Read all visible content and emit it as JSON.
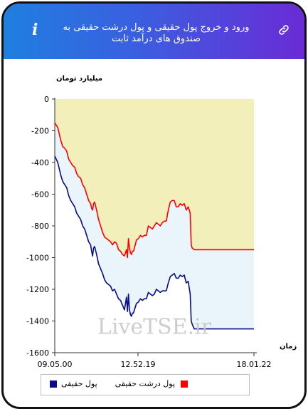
{
  "header": {
    "title": "ورود و خروج پول حقیقی و پول درشت حقیقی به صندوق های درآمد ثابت",
    "info_icon": "info-icon",
    "link_icon": "link-icon",
    "background_start": "#1f7fe0",
    "background_end": "#6a2bd6"
  },
  "watermark": "LiveTSE.ir",
  "chart_data": {
    "type": "line",
    "ylabel": "میلیارد تومان",
    "xlabel": "زمان",
    "ylim": [
      -1600,
      0
    ],
    "yticks": [
      0,
      -200,
      -400,
      -600,
      -800,
      -1000,
      -1200,
      -1400,
      -1600
    ],
    "xlim": [
      0,
      100
    ],
    "xtick_positions": [
      0,
      41.8,
      100
    ],
    "xtick_labels": [
      "09.05.00",
      "12.52.19",
      "18.01.22"
    ],
    "grid": false,
    "legend_position": "bottom",
    "series": [
      {
        "name": "پول درشت حقیقی",
        "color": "#ff0000",
        "fill": "#f3efba",
        "x": [
          0,
          1.5,
          3,
          4,
          5,
          6,
          7,
          8,
          9,
          10,
          11,
          12,
          13,
          14,
          15,
          16,
          17,
          18,
          18.5,
          19,
          19.5,
          20,
          21,
          22,
          23,
          24,
          25,
          26,
          27,
          28,
          29,
          30,
          31,
          32,
          33,
          34,
          35,
          36,
          36.5,
          37,
          37.5,
          38,
          38.5,
          39,
          39.5,
          40,
          41,
          42,
          43,
          44,
          45,
          46,
          47,
          48,
          49,
          50,
          51,
          52,
          53,
          54,
          55,
          56,
          57,
          58,
          59,
          60,
          61,
          62,
          63,
          64,
          65,
          66,
          67,
          68,
          68.5,
          69,
          70,
          72,
          75,
          80,
          85,
          90,
          95,
          100
        ],
        "y": [
          -150,
          -180,
          -260,
          -300,
          -310,
          -330,
          -380,
          -400,
          -420,
          -430,
          -470,
          -490,
          -500,
          -540,
          -560,
          -600,
          -640,
          -660,
          -690,
          -700,
          -660,
          -650,
          -700,
          -760,
          -800,
          -840,
          -870,
          -880,
          -890,
          -900,
          -920,
          -900,
          -910,
          -950,
          -960,
          -980,
          -990,
          -950,
          -1000,
          -880,
          -940,
          -970,
          -980,
          -960,
          -960,
          -940,
          -890,
          -880,
          -860,
          -870,
          -860,
          -860,
          -800,
          -810,
          -820,
          -800,
          -780,
          -790,
          -800,
          -780,
          -770,
          -770,
          -700,
          -650,
          -640,
          -640,
          -680,
          -680,
          -660,
          -670,
          -660,
          -700,
          -680,
          -720,
          -920,
          -940,
          -950,
          -950,
          -950,
          -950,
          -950,
          -950,
          -950,
          -950
        ]
      },
      {
        "name": "پول حقیقی",
        "color": "#0a0a8c",
        "fill": "#eaf4fb",
        "x": [
          0,
          1.5,
          3,
          4,
          5,
          6,
          7,
          8,
          9,
          10,
          11,
          12,
          13,
          14,
          15,
          16,
          17,
          18,
          18.5,
          19,
          19.5,
          20,
          21,
          22,
          23,
          24,
          25,
          26,
          27,
          28,
          29,
          30,
          31,
          32,
          33,
          34,
          35,
          36,
          36.5,
          37,
          37.5,
          38,
          38.5,
          39,
          39.5,
          40,
          41,
          42,
          43,
          44,
          45,
          46,
          47,
          48,
          49,
          50,
          51,
          52,
          53,
          54,
          55,
          56,
          57,
          58,
          59,
          60,
          61,
          62,
          63,
          64,
          65,
          66,
          67,
          68,
          68.5,
          69,
          70,
          72,
          75,
          80,
          85,
          90,
          95,
          100
        ],
        "y": [
          -360,
          -400,
          -480,
          -520,
          -540,
          -560,
          -610,
          -640,
          -660,
          -680,
          -720,
          -740,
          -760,
          -800,
          -820,
          -860,
          -900,
          -920,
          -960,
          -990,
          -940,
          -930,
          -980,
          -1040,
          -1070,
          -1100,
          -1140,
          -1160,
          -1170,
          -1180,
          -1210,
          -1200,
          -1230,
          -1260,
          -1270,
          -1300,
          -1330,
          -1250,
          -1340,
          -1230,
          -1330,
          -1360,
          -1370,
          -1350,
          -1350,
          -1330,
          -1290,
          -1280,
          -1260,
          -1270,
          -1260,
          -1260,
          -1220,
          -1230,
          -1240,
          -1230,
          -1200,
          -1210,
          -1220,
          -1210,
          -1210,
          -1210,
          -1160,
          -1120,
          -1110,
          -1100,
          -1130,
          -1130,
          -1110,
          -1120,
          -1110,
          -1160,
          -1150,
          -1230,
          -1400,
          -1420,
          -1450,
          -1450,
          -1450,
          -1450,
          -1450,
          -1450,
          -1450,
          -1450
        ]
      }
    ]
  }
}
